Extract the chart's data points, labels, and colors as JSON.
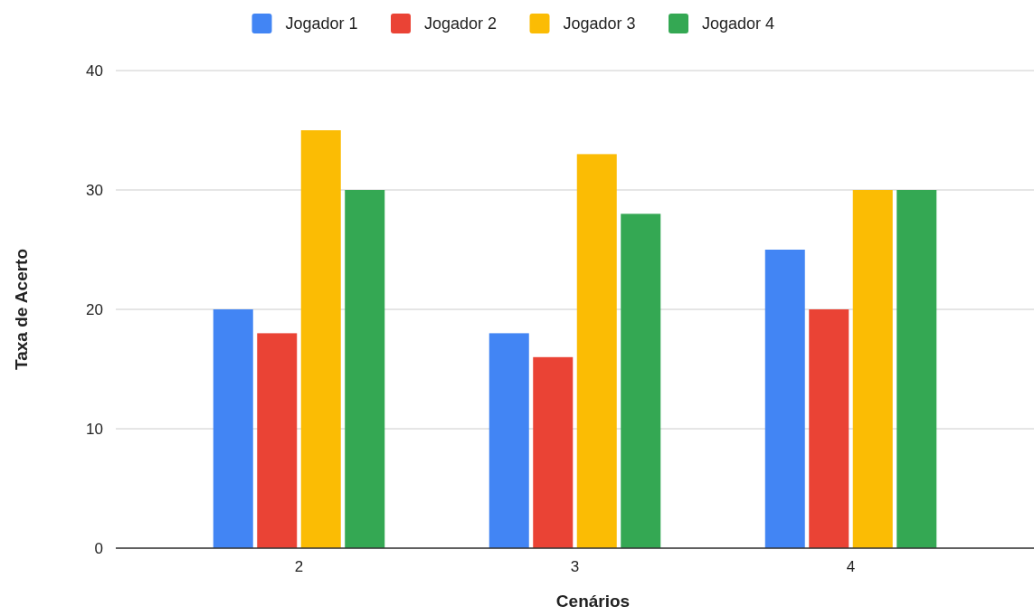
{
  "chart_data": {
    "type": "bar",
    "xlabel": "Cenários",
    "ylabel": "Taxa de Acerto",
    "categories": [
      "2",
      "3",
      "4"
    ],
    "series": [
      {
        "name": "Jogador 1",
        "color": "#4285f4",
        "values": [
          20,
          18,
          25
        ]
      },
      {
        "name": "Jogador 2",
        "color": "#ea4335",
        "values": [
          18,
          16,
          20
        ]
      },
      {
        "name": "Jogador 3",
        "color": "#fbbc04",
        "values": [
          35,
          33,
          30
        ]
      },
      {
        "name": "Jogador 4",
        "color": "#34a853",
        "values": [
          30,
          28,
          30
        ]
      }
    ],
    "ylim": [
      0,
      40
    ],
    "yticks": [
      0,
      10,
      20,
      30,
      40
    ],
    "grid": "y",
    "legend": "top"
  }
}
